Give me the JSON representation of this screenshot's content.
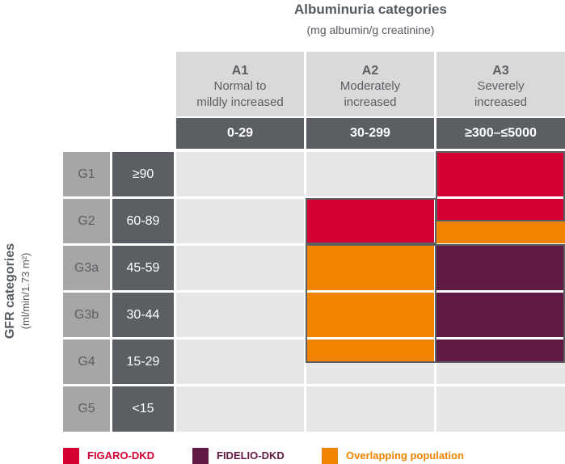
{
  "header": {
    "title": "Albuminuria categories",
    "subtitle": "(mg albumin/g creatinine)"
  },
  "yaxis": {
    "title": "GFR categories",
    "subtitle": "(ml/min/1.73 m²)"
  },
  "columns": [
    {
      "code": "A1",
      "desc1": "Normal to",
      "desc2": "mildly increased",
      "range": "0-29"
    },
    {
      "code": "A2",
      "desc1": "Moderately",
      "desc2": "increased",
      "range": "30-299"
    },
    {
      "code": "A3",
      "desc1": "Severely",
      "desc2": "increased",
      "range": "≥300–≤5000"
    }
  ],
  "rows": [
    {
      "code": "G1",
      "range": "≥90"
    },
    {
      "code": "G2",
      "range": "60-89"
    },
    {
      "code": "G3a",
      "range": "45-59"
    },
    {
      "code": "G3b",
      "range": "30-44"
    },
    {
      "code": "G4",
      "range": "15-29"
    },
    {
      "code": "G5",
      "range": "<15"
    }
  ],
  "legend": [
    {
      "label": "FIGARO-DKD",
      "color": "#d50032"
    },
    {
      "label": "FIDELIO-DKD",
      "color": "#611a44"
    },
    {
      "label": "Overlapping population",
      "color": "#f08300"
    }
  ],
  "colors": {
    "figaro": "#d50032",
    "fidelio": "#611a44",
    "overlap": "#f08300",
    "header_dark": "#5b5f64",
    "header_light": "#d9d9d9",
    "row_label": "#a6a6a6",
    "cell": "#e6e6e6"
  }
}
